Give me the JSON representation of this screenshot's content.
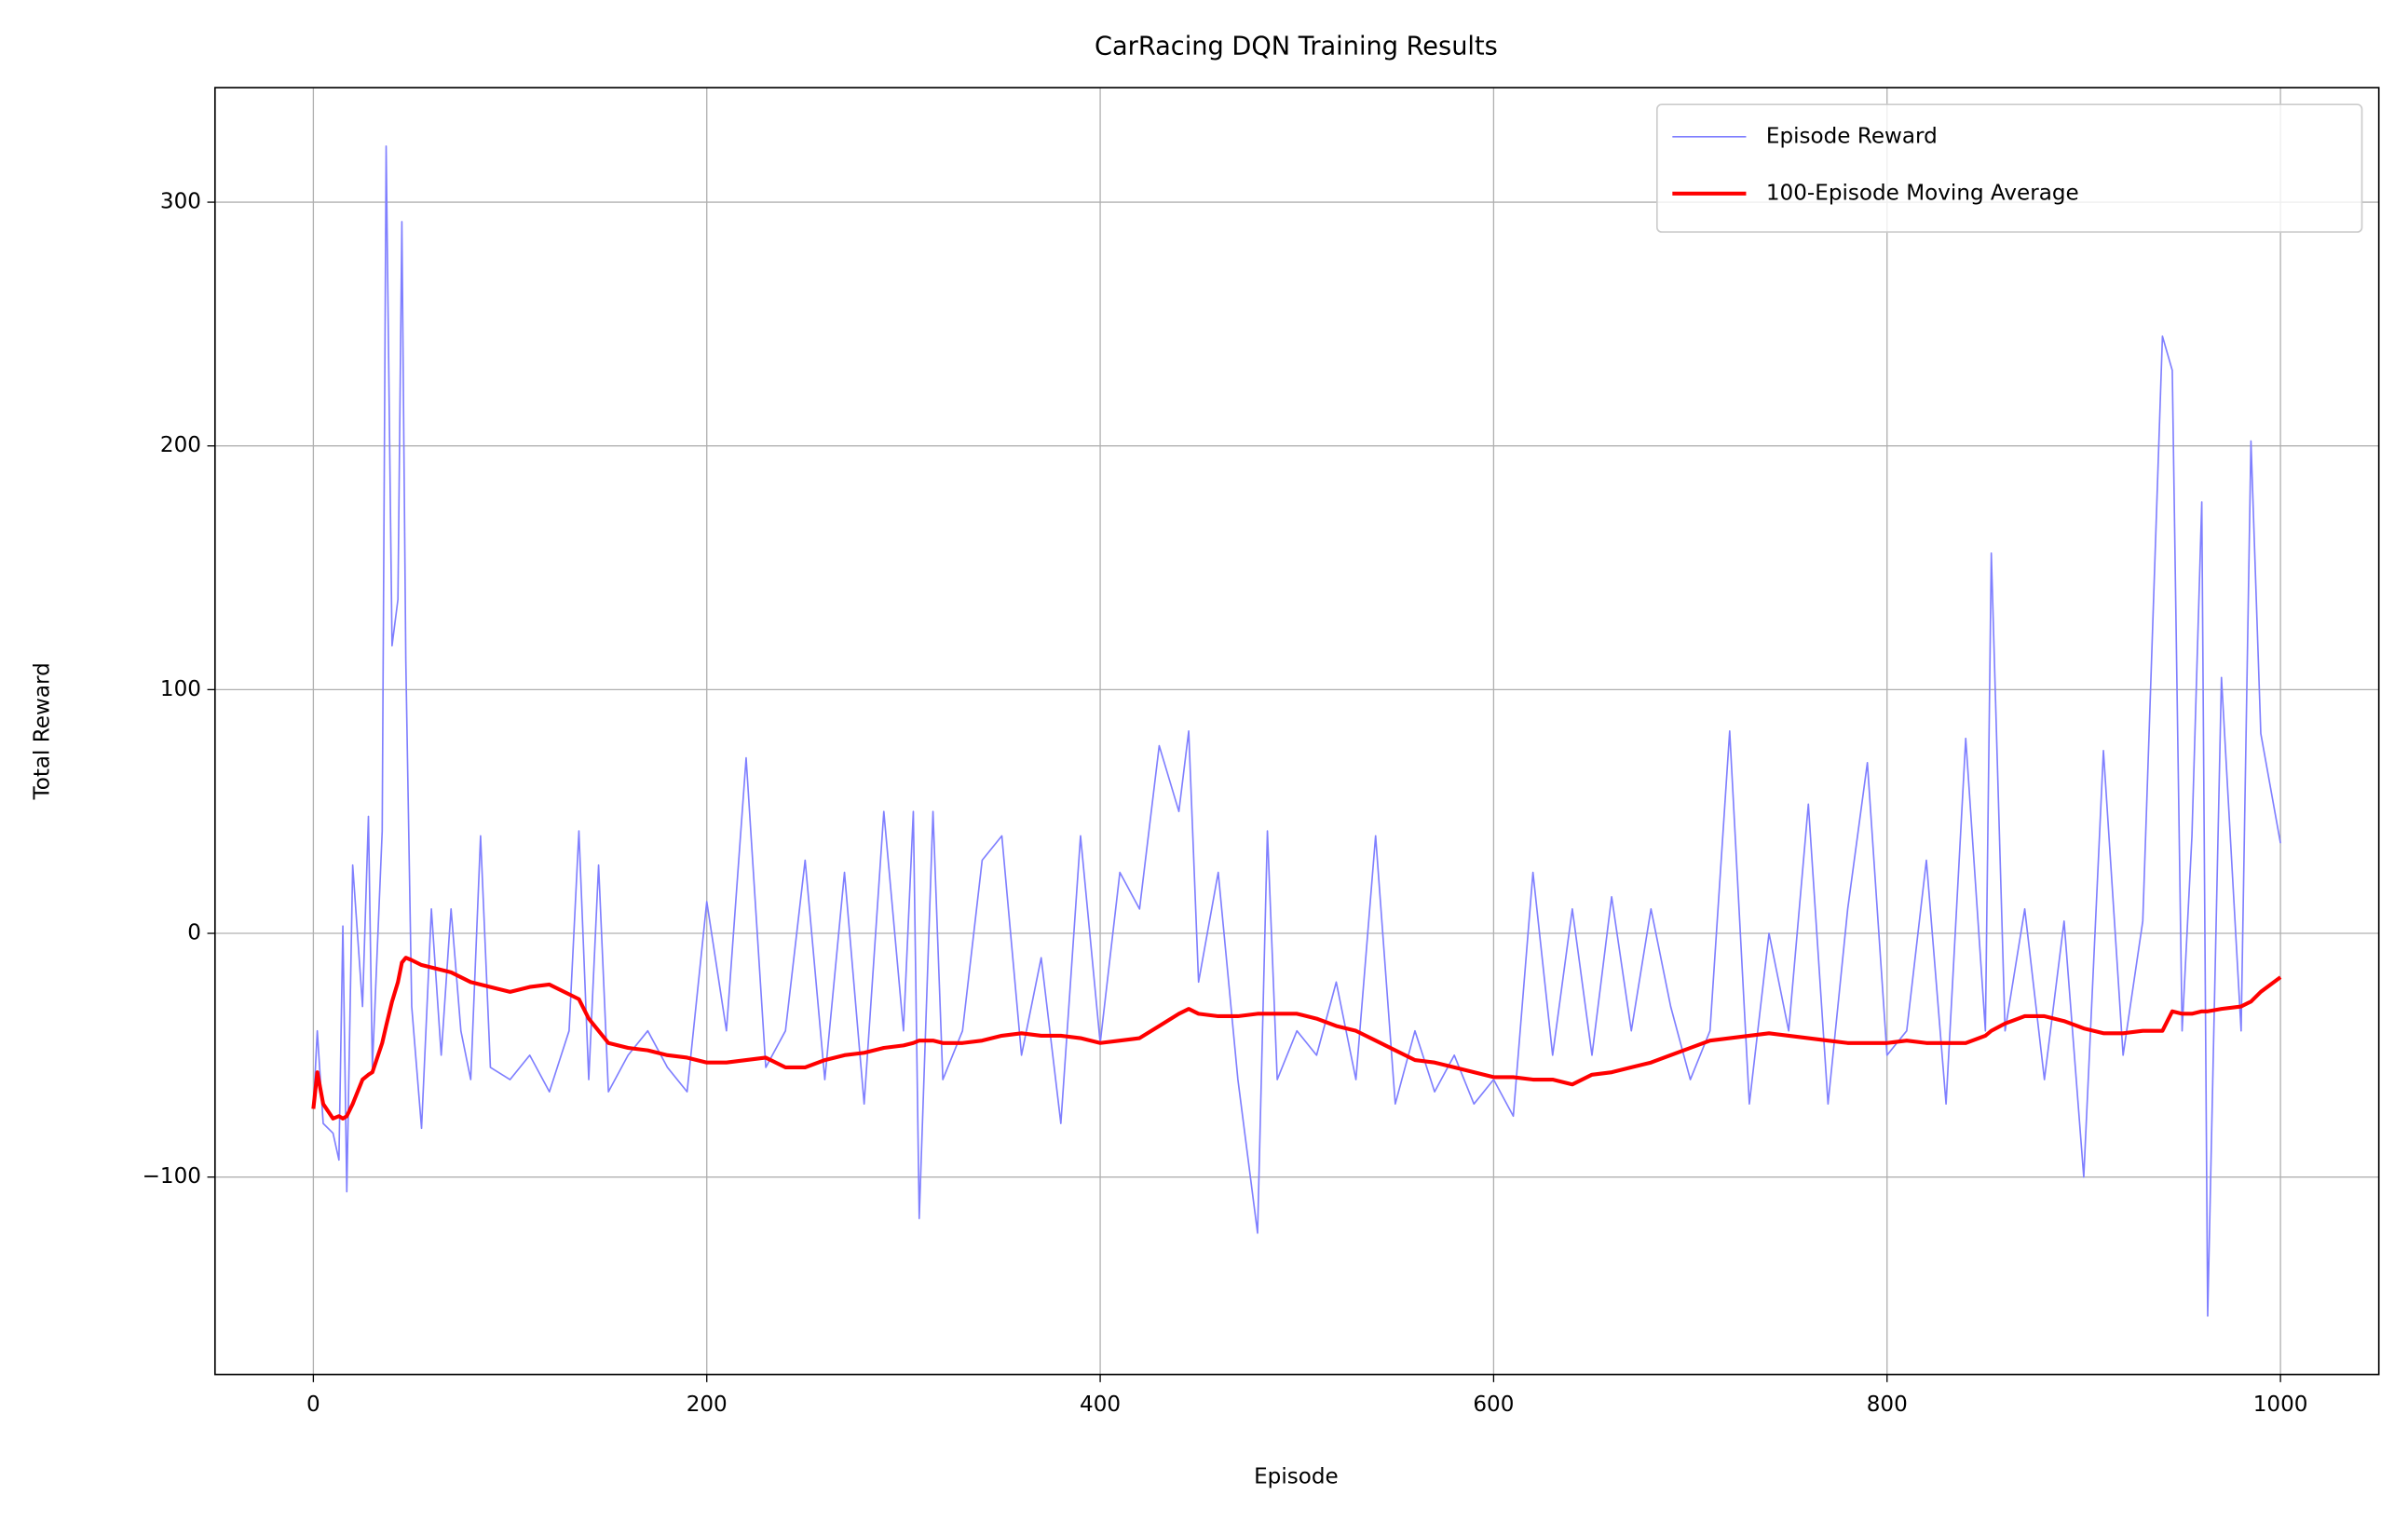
{
  "chart_data": {
    "type": "line",
    "title": "CarRacing DQN Training Results",
    "x_label": "Episode",
    "y_label": "Total Reward",
    "x": [
      0,
      2,
      5,
      10,
      13,
      15,
      17,
      20,
      25,
      28,
      30,
      35,
      37,
      40,
      43,
      45,
      47,
      50,
      55,
      60,
      65,
      70,
      75,
      80,
      85,
      90,
      100,
      110,
      120,
      130,
      135,
      140,
      145,
      150,
      160,
      170,
      180,
      190,
      200,
      210,
      220,
      230,
      240,
      250,
      260,
      270,
      280,
      290,
      300,
      305,
      308,
      315,
      320,
      330,
      340,
      350,
      360,
      370,
      380,
      390,
      400,
      410,
      420,
      430,
      440,
      445,
      450,
      460,
      470,
      480,
      485,
      490,
      500,
      510,
      520,
      530,
      540,
      550,
      560,
      570,
      580,
      590,
      600,
      610,
      620,
      630,
      640,
      650,
      660,
      670,
      680,
      690,
      700,
      710,
      720,
      730,
      740,
      750,
      760,
      770,
      780,
      790,
      800,
      810,
      820,
      830,
      840,
      850,
      853,
      860,
      870,
      880,
      890,
      900,
      910,
      920,
      930,
      940,
      945,
      950,
      955,
      960,
      963,
      970,
      980,
      985,
      990,
      1000
    ],
    "series": [
      {
        "name": "Episode Reward",
        "color": "#7f7fff",
        "width": 1,
        "values": [
          -72,
          -40,
          -78,
          -82,
          -93,
          3,
          -106,
          28,
          -30,
          48,
          -55,
          42,
          323,
          118,
          137,
          292,
          112,
          -30,
          -80,
          10,
          -50,
          10,
          -40,
          -60,
          40,
          -55,
          -60,
          -50,
          -65,
          -40,
          42,
          -60,
          28,
          -65,
          -50,
          -40,
          -55,
          -65,
          13,
          -40,
          72,
          -55,
          -40,
          30,
          -60,
          25,
          -70,
          50,
          -40,
          50,
          -117,
          50,
          -60,
          -40,
          30,
          40,
          -50,
          -10,
          -78,
          40,
          -45,
          25,
          10,
          77,
          50,
          83,
          -20,
          25,
          -60,
          -123,
          42,
          -60,
          -40,
          -50,
          -20,
          -60,
          40,
          -70,
          -40,
          -65,
          -50,
          -70,
          -60,
          -75,
          25,
          -50,
          10,
          -50,
          15,
          -40,
          10,
          -30,
          -60,
          -40,
          83,
          -70,
          0,
          -40,
          53,
          -70,
          10,
          70,
          -50,
          -40,
          30,
          -70,
          80,
          -40,
          156,
          -40,
          10,
          -60,
          5,
          -100,
          75,
          -50,
          5,
          245,
          231,
          -40,
          40,
          177,
          -157,
          105,
          -40,
          202,
          82,
          37
        ]
      },
      {
        "name": "100-Episode Moving Average",
        "color": "#ff0000",
        "width": 2.5,
        "values": [
          -72,
          -57,
          -70,
          -76,
          -75,
          -76,
          -75,
          -70,
          -60,
          -58,
          -57,
          -45,
          -38,
          -28,
          -20,
          -12,
          -10,
          -11,
          -13,
          -14,
          -15,
          -16,
          -18,
          -20,
          -21,
          -22,
          -24,
          -22,
          -21,
          -25,
          -27,
          -35,
          -40,
          -45,
          -47,
          -48,
          -50,
          -51,
          -53,
          -53,
          -52,
          -51,
          -55,
          -55,
          -52,
          -50,
          -49,
          -47,
          -46,
          -45,
          -44,
          -44,
          -45,
          -45,
          -44,
          -42,
          -41,
          -42,
          -42,
          -43,
          -45,
          -44,
          -43,
          -38,
          -33,
          -31,
          -33,
          -34,
          -34,
          -33,
          -33,
          -33,
          -33,
          -35,
          -38,
          -40,
          -44,
          -48,
          -52,
          -53,
          -55,
          -57,
          -59,
          -59,
          -60,
          -60,
          -62,
          -58,
          -57,
          -55,
          -53,
          -50,
          -47,
          -44,
          -43,
          -42,
          -41,
          -42,
          -43,
          -44,
          -45,
          -45,
          -45,
          -44,
          -45,
          -45,
          -45,
          -42,
          -40,
          -37,
          -34,
          -34,
          -36,
          -39,
          -41,
          -41,
          -40,
          -40,
          -32,
          -33,
          -33,
          -32,
          -32,
          -31,
          -30,
          -28,
          -24,
          -18
        ]
      }
    ],
    "xlim": [
      -50,
      1050
    ],
    "ylim": [
      -181,
      347
    ],
    "xticks": [
      0,
      200,
      400,
      600,
      800,
      1000
    ],
    "yticks": [
      {
        "value": -100,
        "label": "−100"
      },
      0,
      100,
      200,
      300
    ],
    "grid": true,
    "legend": "upper right"
  }
}
